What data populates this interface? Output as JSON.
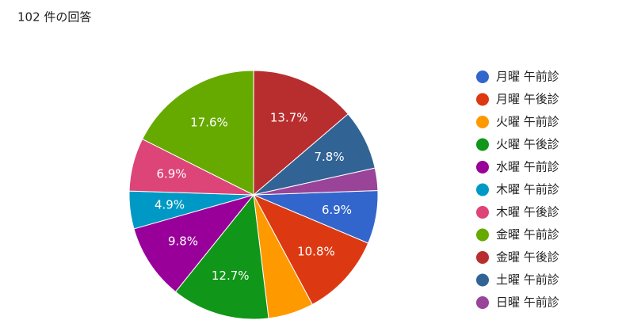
{
  "chart_data": {
    "type": "pie",
    "title": "102 件の回答",
    "categories": [
      "月曜 午前診",
      "月曜 午後診",
      "火曜 午前診",
      "火曜 午後診",
      "水曜 午前診",
      "木曜 午前診",
      "木曜 午後診",
      "金曜 午前診",
      "金曜 午後診",
      "土曜 午前診",
      "日曜 午前診"
    ],
    "values": [
      6.9,
      10.8,
      5.9,
      12.7,
      9.8,
      4.9,
      6.9,
      17.6,
      13.7,
      7.8,
      2.9
    ],
    "value_labels": [
      "6.9%",
      "10.8%",
      null,
      "12.7%",
      "9.8%",
      "4.9%",
      "6.9%",
      "17.6%",
      "13.7%",
      "7.8%",
      null
    ],
    "colors": [
      "#3366cc",
      "#dc3912",
      "#ff9900",
      "#109618",
      "#990099",
      "#0099c6",
      "#dd4477",
      "#66aa00",
      "#b82e2e",
      "#316395",
      "#994499"
    ],
    "legend": "right"
  }
}
